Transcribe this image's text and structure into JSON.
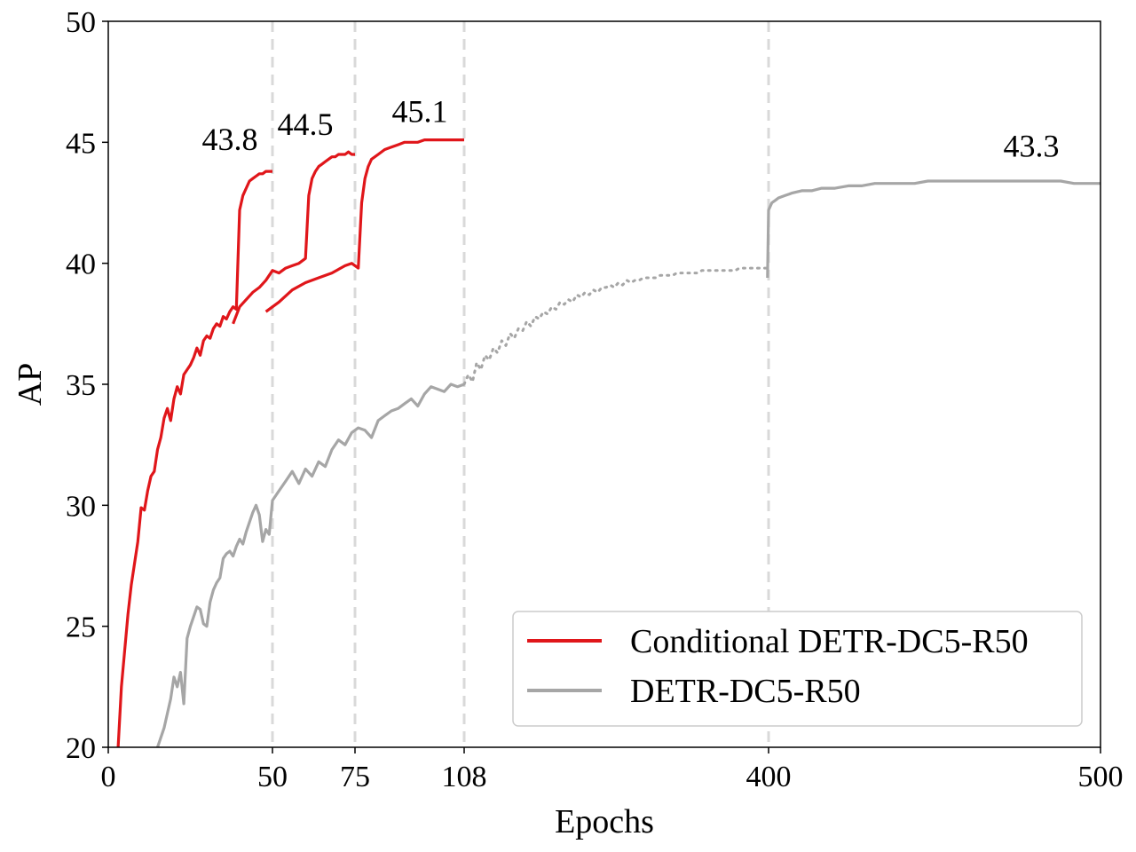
{
  "chart_data": {
    "type": "line",
    "xlabel": "Epochs",
    "ylabel": "AP",
    "xlim": [
      0,
      500
    ],
    "ylim": [
      20,
      50
    ],
    "xticks": [
      0,
      50,
      75,
      108,
      400,
      500
    ],
    "yticks": [
      20,
      25,
      30,
      35,
      40,
      45,
      50
    ],
    "vlines": [
      50,
      75,
      108,
      400
    ],
    "legend": {
      "placement": "lower-right",
      "entries": [
        "Conditional DETR-DC5-R50",
        "DETR-DC5-R50"
      ]
    },
    "colors": {
      "conditional": "#e0161a",
      "detr": "#a6a6a6",
      "vline": "#d9d9d9"
    },
    "annotations": [
      {
        "text": "43.8",
        "x": 50,
        "y": 43.8
      },
      {
        "text": "44.5",
        "x": 75,
        "y": 44.5
      },
      {
        "text": "45.1",
        "x": 108,
        "y": 45.1
      },
      {
        "text": "43.3",
        "x": 500,
        "y": 43.3
      }
    ],
    "series": [
      {
        "name": "Conditional DETR-DC5-R50",
        "runs": [
          {
            "x": [
              3,
              4,
              5,
              6,
              7,
              8,
              9,
              10,
              11,
              12,
              13,
              14,
              15,
              16,
              17,
              18,
              19,
              20,
              21,
              22,
              23,
              24,
              25,
              26,
              27,
              28,
              29,
              30,
              31,
              32,
              33,
              34,
              35,
              36,
              37,
              38,
              39,
              40,
              41,
              42,
              43,
              44,
              45,
              46,
              47,
              48,
              49,
              50
            ],
            "y": [
              20,
              22.5,
              24,
              25.5,
              26.7,
              27.6,
              28.5,
              29.9,
              29.8,
              30.6,
              31.2,
              31.4,
              32.3,
              32.8,
              33.6,
              34,
              33.5,
              34.4,
              34.9,
              34.6,
              35.4,
              35.6,
              35.8,
              36.1,
              36.5,
              36.2,
              36.8,
              37,
              36.9,
              37.3,
              37.5,
              37.4,
              37.8,
              37.7,
              38,
              38.2,
              38.1,
              42.2,
              42.8,
              43.1,
              43.4,
              43.5,
              43.6,
              43.7,
              43.7,
              43.8,
              43.8,
              43.8
            ]
          },
          {
            "x": [
              38,
              40,
              42,
              44,
              46,
              48,
              50,
              52,
              54,
              56,
              58,
              60,
              61,
              62,
              63,
              64,
              65,
              66,
              67,
              68,
              69,
              70,
              71,
              72,
              73,
              74,
              75
            ],
            "y": [
              37.5,
              38.2,
              38.5,
              38.8,
              39,
              39.3,
              39.7,
              39.6,
              39.8,
              39.9,
              40,
              40.2,
              42.8,
              43.5,
              43.8,
              44,
              44.1,
              44.2,
              44.3,
              44.4,
              44.4,
              44.5,
              44.5,
              44.5,
              44.6,
              44.5,
              44.5
            ]
          },
          {
            "x": [
              48,
              52,
              56,
              60,
              64,
              68,
              72,
              74,
              76,
              77,
              78,
              79,
              80,
              82,
              84,
              86,
              88,
              90,
              92,
              94,
              96,
              98,
              100,
              102,
              104,
              106,
              108
            ],
            "y": [
              38,
              38.4,
              38.9,
              39.2,
              39.4,
              39.6,
              39.9,
              40,
              39.8,
              42.5,
              43.5,
              44,
              44.3,
              44.5,
              44.7,
              44.8,
              44.9,
              45,
              45,
              45,
              45.1,
              45.1,
              45.1,
              45.1,
              45.1,
              45.1,
              45.1
            ]
          }
        ]
      },
      {
        "name": "DETR-DC5-R50",
        "runs": [
          {
            "x": [
              15,
              16,
              17,
              18,
              19,
              20,
              21,
              22,
              23,
              24,
              25,
              26,
              27,
              28,
              29,
              30,
              31,
              32,
              33,
              34,
              35,
              36,
              37,
              38,
              39,
              40,
              41,
              42,
              43,
              44,
              45,
              46,
              47,
              48,
              49,
              50,
              52,
              54,
              56,
              58,
              60,
              62,
              64,
              66,
              68,
              70,
              72,
              74,
              76,
              78,
              80,
              82,
              84,
              86,
              88,
              90,
              92,
              94,
              96,
              98,
              100,
              102,
              104,
              106,
              108
            ],
            "y": [
              20,
              20.4,
              20.8,
              21.4,
              22,
              22.9,
              22.5,
              23.1,
              21.8,
              24.5,
              25,
              25.4,
              25.8,
              25.7,
              25.1,
              25,
              26,
              26.5,
              26.8,
              27,
              27.8,
              28,
              28.1,
              27.9,
              28.3,
              28.6,
              28.4,
              28.9,
              29.3,
              29.7,
              30,
              29.6,
              28.5,
              29,
              28.8,
              30.2,
              30.6,
              31,
              31.4,
              30.9,
              31.5,
              31.2,
              31.8,
              31.6,
              32.3,
              32.7,
              32.5,
              33,
              33.2,
              33.1,
              32.8,
              33.5,
              33.7,
              33.9,
              34,
              34.2,
              34.4,
              34.1,
              34.6,
              34.9,
              34.8,
              34.7,
              35,
              34.9,
              35
            ]
          },
          {
            "x": [
              108,
              112,
              116,
              120,
              124,
              128,
              132,
              136,
              140,
              144,
              148,
              152,
              156,
              160,
              164,
              168,
              172,
              176,
              180,
              184,
              188,
              192,
              196,
              200,
              204,
              208,
              212,
              216,
              220,
              224,
              228,
              232,
              236,
              240,
              244,
              248,
              252,
              256,
              260,
              264,
              268,
              272,
              276,
              280,
              284,
              288,
              292,
              296,
              300,
              304,
              308,
              312,
              316,
              320,
              324,
              328,
              332,
              336,
              340,
              344,
              348,
              352,
              356,
              360,
              364,
              368,
              372,
              376,
              380,
              384,
              388,
              392,
              396,
              400
            ],
            "y": [
              35,
              35.4,
              35.1,
              35.9,
              35.6,
              36.2,
              36,
              36.5,
              36.3,
              36.8,
              36.6,
              37.1,
              36.9,
              37.3,
              37.2,
              37.6,
              37.4,
              37.8,
              37.7,
              38,
              37.9,
              38.2,
              38.1,
              38.4,
              38.3,
              38.5,
              38.4,
              38.7,
              38.6,
              38.8,
              38.7,
              38.9,
              38.8,
              39,
              39,
              39.1,
              39,
              39.2,
              39.1,
              39.3,
              39.2,
              39.3,
              39.3,
              39.4,
              39.4,
              39.4,
              39.4,
              39.5,
              39.5,
              39.5,
              39.5,
              39.6,
              39.6,
              39.6,
              39.6,
              39.6,
              39.6,
              39.7,
              39.7,
              39.7,
              39.7,
              39.7,
              39.7,
              39.7,
              39.7,
              39.7,
              39.8,
              39.8,
              39.8,
              39.8,
              39.8,
              39.8,
              39.8,
              39.8
            ]
          },
          {
            "x": [
              399,
              400,
              401,
              402,
              403,
              405,
              407,
              410,
              413,
              416,
              420,
              424,
              428,
              432,
              436,
              440,
              444,
              448,
              452,
              456,
              460,
              464,
              468,
              472,
              476,
              480,
              484,
              488,
              492,
              496,
              500
            ],
            "y": [
              39.4,
              42.2,
              42.5,
              42.6,
              42.7,
              42.8,
              42.9,
              43,
              43,
              43.1,
              43.1,
              43.2,
              43.2,
              43.3,
              43.3,
              43.3,
              43.3,
              43.4,
              43.4,
              43.4,
              43.4,
              43.4,
              43.4,
              43.4,
              43.4,
              43.4,
              43.4,
              43.4,
              43.3,
              43.3,
              43.3
            ]
          }
        ]
      }
    ]
  }
}
